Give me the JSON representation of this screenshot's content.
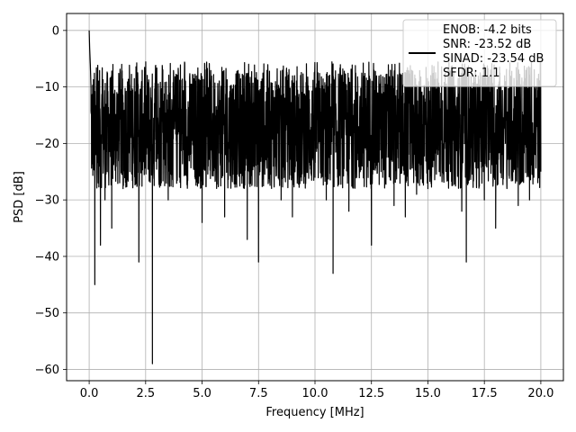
{
  "chart_data": {
    "type": "line",
    "title": "",
    "xlabel": "Frequency [MHz]",
    "ylabel": "PSD [dB]",
    "xlim": [
      -1,
      21
    ],
    "ylim": [
      -62,
      3
    ],
    "xticks": [
      0.0,
      2.5,
      5.0,
      7.5,
      10.0,
      12.5,
      15.0,
      17.5,
      20.0
    ],
    "xtick_labels": [
      "0.0",
      "2.5",
      "5.0",
      "7.5",
      "10.0",
      "12.5",
      "15.0",
      "17.5",
      "20.0"
    ],
    "yticks": [
      0,
      -10,
      -20,
      -30,
      -40,
      -50,
      -60
    ],
    "ytick_labels": [
      "0",
      "−10",
      "−20",
      "−30",
      "−40",
      "−50",
      "−60"
    ],
    "grid": true,
    "legend_position": "top-right",
    "series": [
      {
        "name": "ENOB: -4.2 bits\nSNR: -23.52 dB\nSINAD: -23.54 dB\nSFDR: 1.1",
        "color": "#000000",
        "x": [
          0.0,
          0.02,
          0.05,
          0.08,
          0.1,
          0.15,
          0.2,
          0.25,
          0.3,
          0.4,
          0.5,
          0.6,
          0.7,
          0.8,
          1.0,
          1.2,
          1.5,
          1.8,
          2.0,
          2.2,
          2.5,
          2.8,
          3.0,
          3.5,
          4.0,
          4.5,
          5.0,
          5.5,
          6.0,
          6.5,
          7.0,
          7.5,
          8.0,
          8.5,
          9.0,
          9.5,
          10.0,
          10.5,
          10.8,
          11.0,
          11.5,
          12.0,
          12.5,
          13.0,
          13.5,
          14.0,
          14.5,
          15.0,
          15.5,
          16.0,
          16.5,
          16.7,
          17.0,
          17.5,
          18.0,
          18.5,
          19.0,
          19.5,
          20.0
        ],
        "y": [
          0,
          -3,
          -6,
          -10,
          -12,
          -16,
          -20,
          -45,
          -22,
          -27,
          -38,
          -20,
          -30,
          -25,
          -35,
          -22,
          -28,
          -25,
          -20,
          -41,
          -24,
          -59,
          -22,
          -30,
          -26,
          -22,
          -34,
          -24,
          -33,
          -27,
          -37,
          -41,
          -27,
          -30,
          -33,
          -25,
          -26,
          -30,
          -43,
          -26,
          -32,
          -25,
          -38,
          -26,
          -31,
          -33,
          -29,
          -28,
          -25,
          -24,
          -32,
          -41,
          -24,
          -30,
          -35,
          -28,
          -31,
          -30,
          -25
        ]
      }
    ],
    "noise_band": {
      "x_start": 0.08,
      "x_end": 20.0,
      "upper_envelope_db": -7,
      "peak_db": -5.5,
      "lower_typical_db": -28,
      "mean_db": -17
    }
  }
}
